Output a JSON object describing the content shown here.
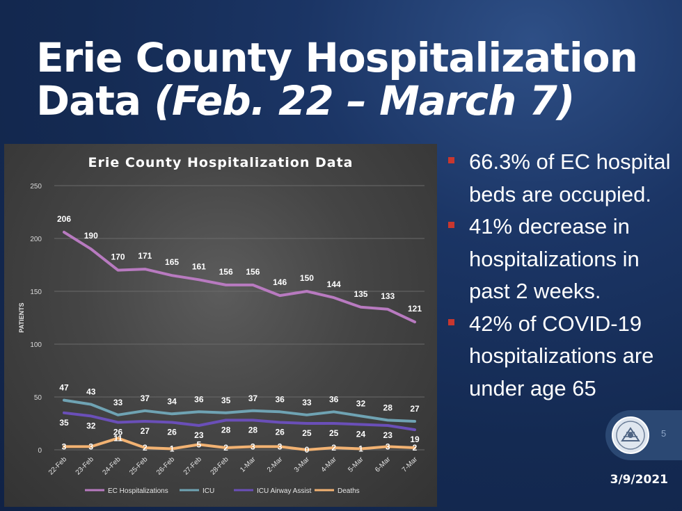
{
  "slide": {
    "title_main": "Erie County Hospitalization",
    "title_sub_prefix": "Data ",
    "title_sub_italic": "(Feb. 22 – March 7)",
    "bullets": [
      "66.3% of EC hospital beds are occupied.",
      "41% decrease in hospitalizations in past 2 weeks.",
      "42% of COVID-19 hospitalizations are under age 65"
    ],
    "page_number": "5",
    "date": "3/9/2021",
    "seal_icon": "county-seal-icon"
  },
  "chart_data": {
    "type": "line",
    "title": "Erie County Hospitalization Data",
    "xlabel": "",
    "ylabel": "PATIENTS",
    "ylim": [
      0,
      250
    ],
    "yticks": [
      "0",
      "50",
      "100",
      "150",
      "200",
      "250"
    ],
    "grid": true,
    "legend_position": "bottom",
    "categories": [
      "22-Feb",
      "23-Feb",
      "24-Feb",
      "25-Feb",
      "26-Feb",
      "27-Feb",
      "28-Feb",
      "1-Mar",
      "2-Mar",
      "3-Mar",
      "4-Mar",
      "5-Mar",
      "6-Mar",
      "7-Mar"
    ],
    "series": [
      {
        "name": "EC Hospitalizations",
        "color": "#b87ac0",
        "values": [
          206,
          190,
          170,
          171,
          165,
          161,
          156,
          156,
          146,
          150,
          144,
          135,
          133,
          121
        ]
      },
      {
        "name": "ICU",
        "color": "#6fa3b3",
        "values": [
          47,
          43,
          33,
          37,
          34,
          36,
          35,
          37,
          36,
          33,
          36,
          32,
          28,
          27
        ]
      },
      {
        "name": "ICU Airway Assist",
        "color": "#6a4fb8",
        "values": [
          35,
          32,
          26,
          27,
          26,
          23,
          28,
          28,
          26,
          25,
          25,
          24,
          23,
          19
        ]
      },
      {
        "name": "Deaths",
        "color": "#f2b272",
        "values": [
          3,
          3,
          11,
          2,
          1,
          5,
          2,
          3,
          3,
          0,
          2,
          1,
          3,
          2
        ]
      }
    ]
  }
}
